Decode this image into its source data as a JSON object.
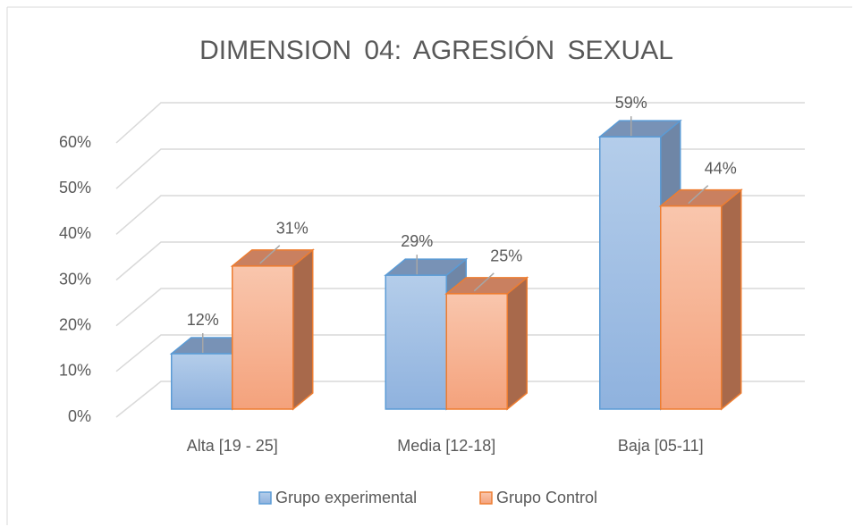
{
  "chart_data": {
    "type": "bar3d",
    "title": "DIMENSION 04: AGRESIÓN SEXUAL",
    "categories": [
      "Alta [19 - 25]",
      "Media [12-18]",
      "Baja [05-11]"
    ],
    "series": [
      {
        "name": "Grupo experimental",
        "color": "#5b9bd5",
        "values": [
          12,
          29,
          59
        ],
        "value_labels": [
          "12%",
          "29%",
          "59%"
        ]
      },
      {
        "name": "Grupo Control",
        "color": "#ed7d31",
        "values": [
          31,
          25,
          44
        ],
        "value_labels": [
          "31%",
          "25%",
          "44%"
        ]
      }
    ],
    "ylim": [
      0,
      60
    ],
    "yticks": [
      {
        "value": 0,
        "label": "0%"
      },
      {
        "value": 10,
        "label": "10%"
      },
      {
        "value": 20,
        "label": "20%"
      },
      {
        "value": 30,
        "label": "30%"
      },
      {
        "value": 40,
        "label": "40%"
      },
      {
        "value": 50,
        "label": "50%"
      },
      {
        "value": 60,
        "label": "60%"
      }
    ],
    "grid": true,
    "legend": "bottom"
  }
}
